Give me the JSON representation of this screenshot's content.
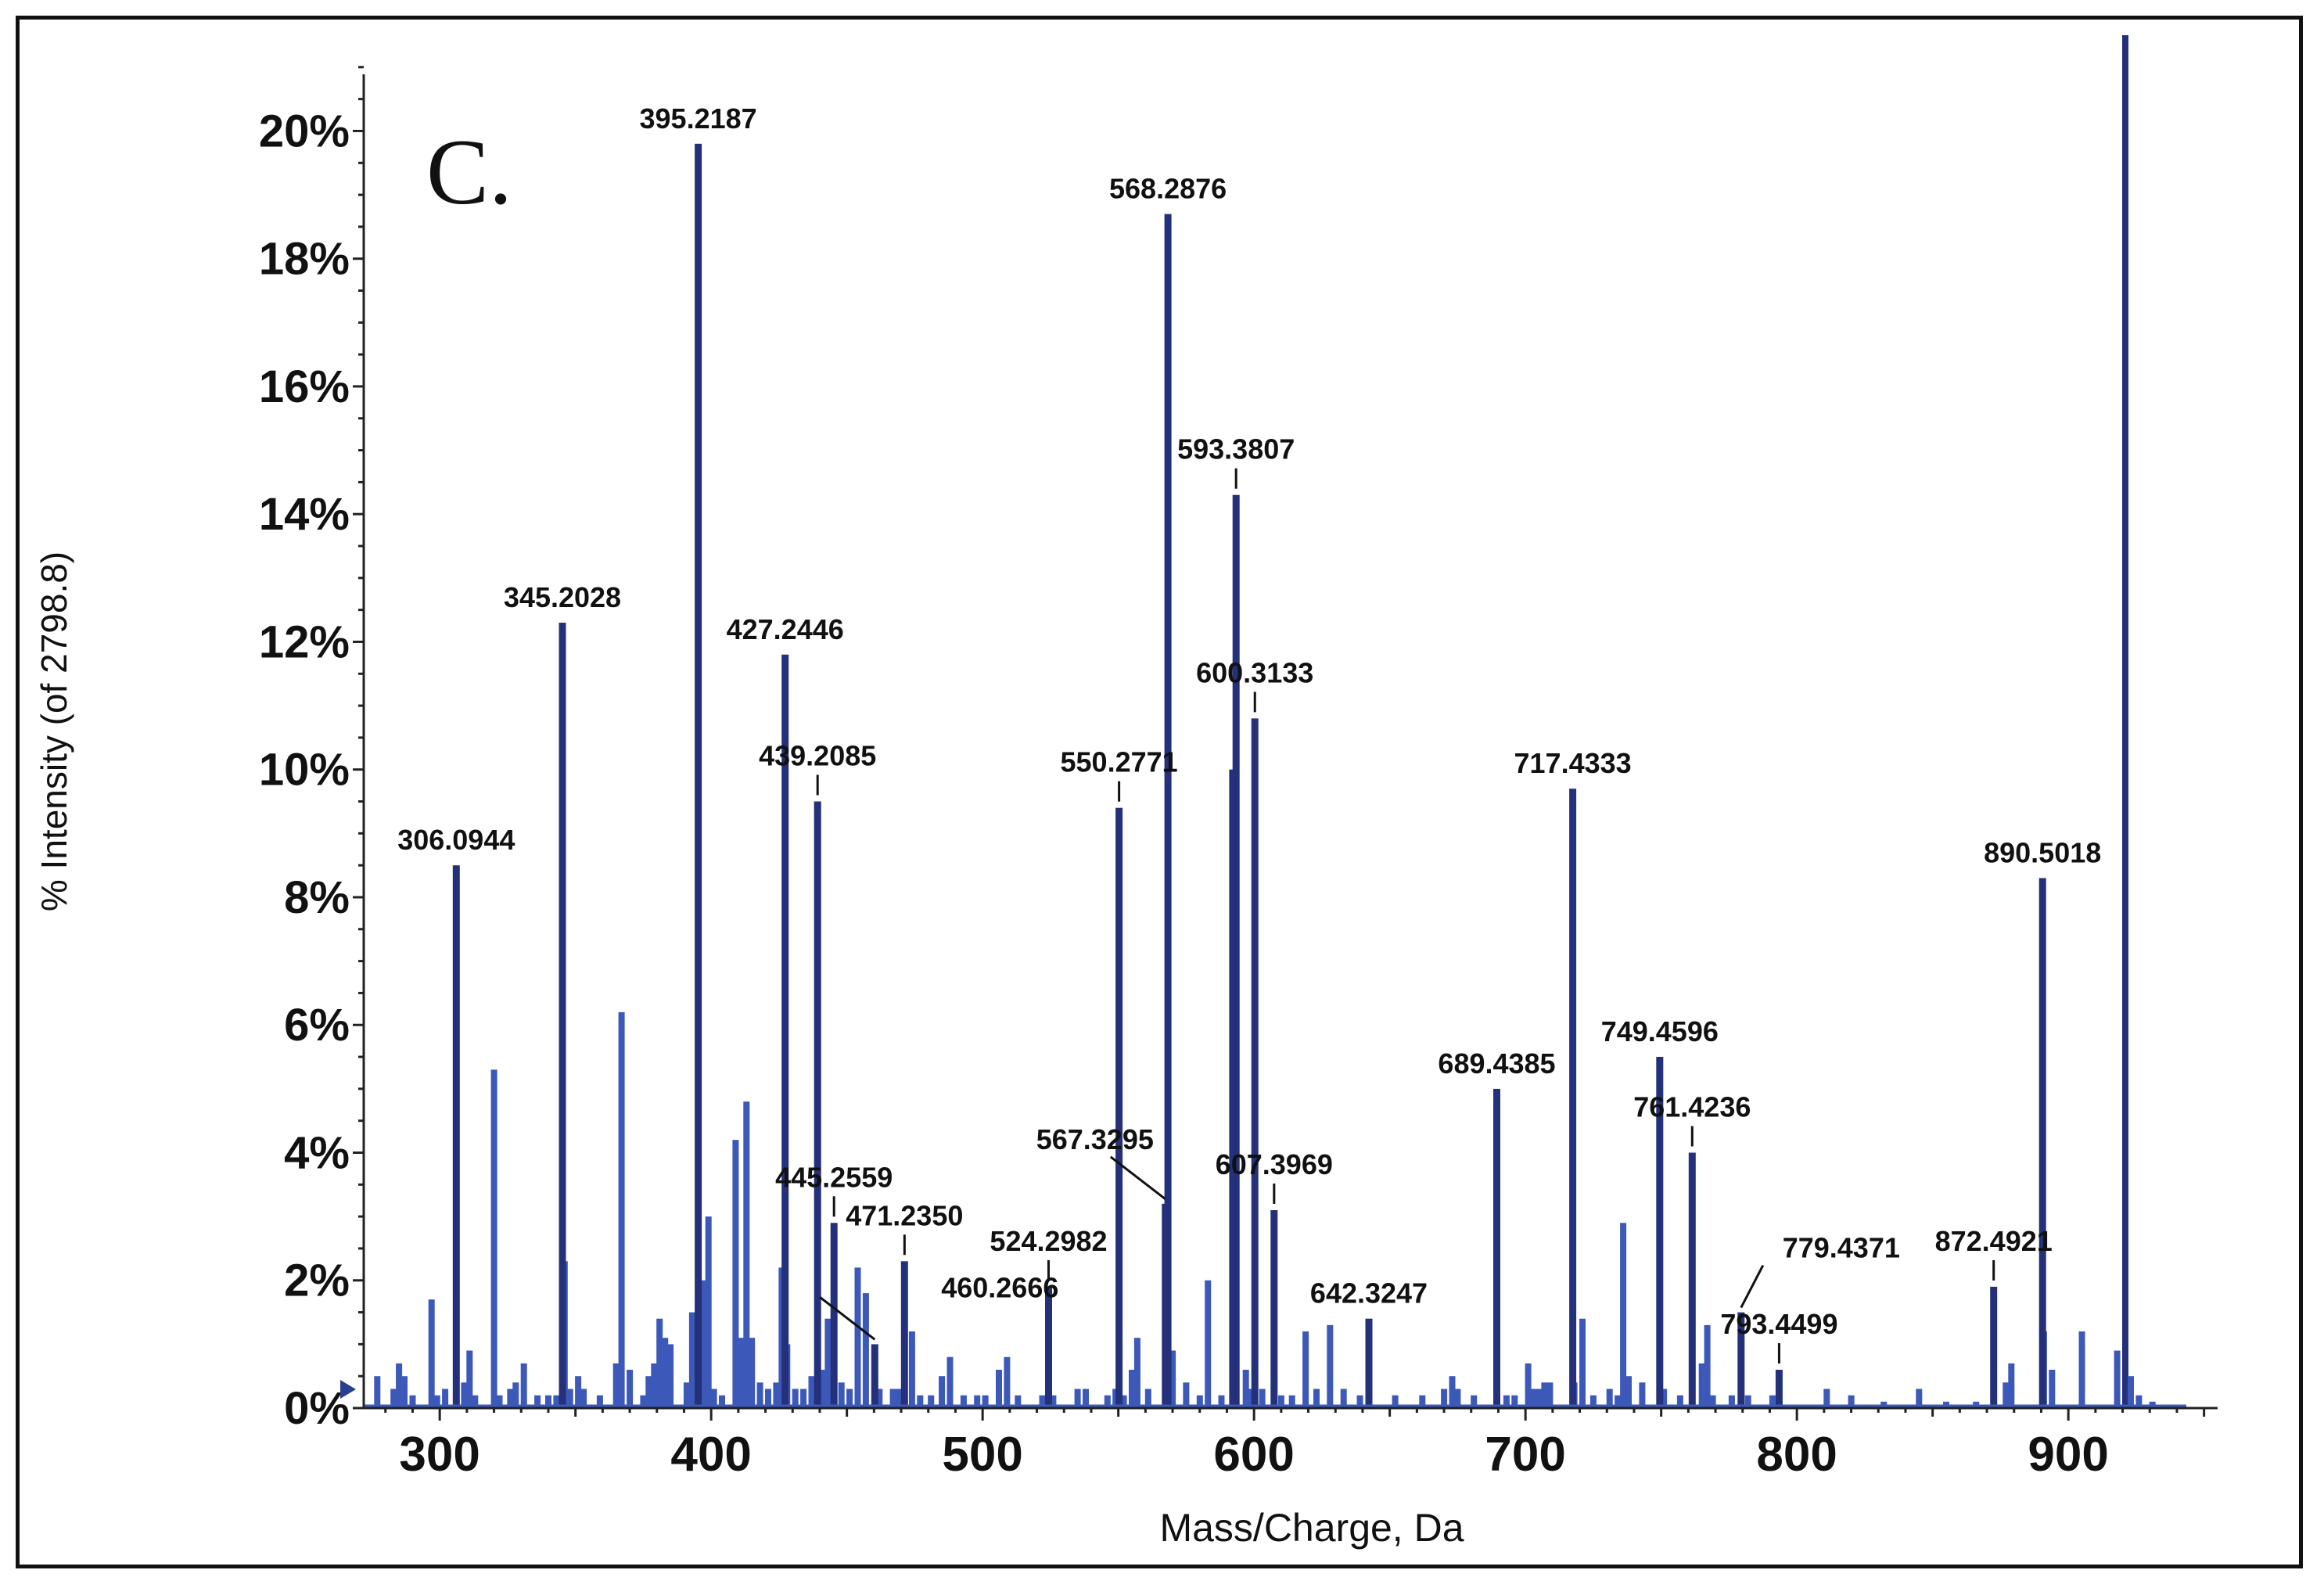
{
  "chart_data": {
    "type": "bar",
    "panel_label": "C.",
    "xlabel": "Mass/Charge, Da",
    "ylabel": "% Intensity (of 2798.8)",
    "xlim": [
      272,
      955
    ],
    "ylim": [
      0,
      21.5
    ],
    "x_ticks": [
      300,
      400,
      500,
      600,
      700,
      800,
      900
    ],
    "y_ticks": [
      0,
      2,
      4,
      6,
      8,
      10,
      12,
      14,
      16,
      18,
      20
    ],
    "y_tick_format": "%",
    "colors": {
      "peak": "#3c58b8",
      "peak_dark": "#24307a",
      "axis": "#222222"
    },
    "labeled_peaks": [
      {
        "mz": 306.0944,
        "label": "306.0944",
        "intensity": 8.5,
        "leader": "none"
      },
      {
        "mz": 345.2028,
        "label": "345.2028",
        "intensity": 12.3,
        "leader": "none"
      },
      {
        "mz": 395.2187,
        "label": "395.2187",
        "intensity": 19.8,
        "leader": "none"
      },
      {
        "mz": 427.2446,
        "label": "427.2446",
        "intensity": 11.8,
        "leader": "none"
      },
      {
        "mz": 439.2085,
        "label": "439.2085",
        "intensity": 9.5,
        "leader": "tick"
      },
      {
        "mz": 445.2559,
        "label": "445.2559",
        "intensity": 2.9,
        "leader": "tick"
      },
      {
        "mz": 460.2666,
        "label": "460.2666",
        "intensity": 1.0,
        "leader": "diag"
      },
      {
        "mz": 471.235,
        "label": "471.2350",
        "intensity": 2.3,
        "leader": "tick"
      },
      {
        "mz": 524.2982,
        "label": "524.2982",
        "intensity": 1.9,
        "leader": "tick"
      },
      {
        "mz": 550.2771,
        "label": "550.2771",
        "intensity": 9.4,
        "leader": "tick"
      },
      {
        "mz": 567.3295,
        "label": "567.3295",
        "intensity": 3.2,
        "leader": "diag"
      },
      {
        "mz": 568.2876,
        "label": "568.2876",
        "intensity": 18.7,
        "leader": "none"
      },
      {
        "mz": 593.3807,
        "label": "593.3807",
        "intensity": 14.3,
        "leader": "tick"
      },
      {
        "mz": 600.3133,
        "label": "600.3133",
        "intensity": 10.8,
        "leader": "tick"
      },
      {
        "mz": 607.3969,
        "label": "607.3969",
        "intensity": 3.1,
        "leader": "tick"
      },
      {
        "mz": 642.3247,
        "label": "642.3247",
        "intensity": 1.4,
        "leader": "none"
      },
      {
        "mz": 689.4385,
        "label": "689.4385",
        "intensity": 5.0,
        "leader": "none"
      },
      {
        "mz": 717.4333,
        "label": "717.4333",
        "intensity": 9.7,
        "leader": "none"
      },
      {
        "mz": 749.4596,
        "label": "749.4596",
        "intensity": 5.5,
        "leader": "none"
      },
      {
        "mz": 761.4236,
        "label": "761.4236",
        "intensity": 4.0,
        "leader": "tick"
      },
      {
        "mz": 779.4371,
        "label": "779.4371",
        "intensity": 1.5,
        "leader": "diag"
      },
      {
        "mz": 793.4499,
        "label": "793.4499",
        "intensity": 0.6,
        "leader": "tick"
      },
      {
        "mz": 872.4921,
        "label": "872.4921",
        "intensity": 1.9,
        "leader": "tick"
      },
      {
        "mz": 890.5018,
        "label": "890.5018",
        "intensity": 8.3,
        "leader": "none"
      }
    ],
    "unlabeled_peaks": [
      [
        277,
        0.5
      ],
      [
        283,
        0.3
      ],
      [
        285,
        0.7
      ],
      [
        287,
        0.5
      ],
      [
        290,
        0.2
      ],
      [
        297,
        1.7
      ],
      [
        299,
        0.2
      ],
      [
        302,
        0.3
      ],
      [
        309,
        0.4
      ],
      [
        311,
        0.9
      ],
      [
        313,
        0.2
      ],
      [
        320,
        5.3
      ],
      [
        322,
        0.2
      ],
      [
        326,
        0.3
      ],
      [
        328,
        0.4
      ],
      [
        331,
        0.7
      ],
      [
        336,
        0.2
      ],
      [
        340,
        0.2
      ],
      [
        343,
        0.2
      ],
      [
        346,
        2.3
      ],
      [
        348,
        0.3
      ],
      [
        351,
        0.5
      ],
      [
        353,
        0.3
      ],
      [
        359,
        0.2
      ],
      [
        365,
        0.7
      ],
      [
        367,
        6.2
      ],
      [
        370,
        0.6
      ],
      [
        375,
        0.2
      ],
      [
        377,
        0.5
      ],
      [
        379,
        0.7
      ],
      [
        381,
        1.4
      ],
      [
        383,
        1.1
      ],
      [
        385,
        1.0
      ],
      [
        391,
        0.4
      ],
      [
        393,
        1.5
      ],
      [
        397,
        2.0
      ],
      [
        399,
        3.0
      ],
      [
        401,
        0.3
      ],
      [
        404,
        0.2
      ],
      [
        409,
        4.2
      ],
      [
        411,
        1.1
      ],
      [
        413,
        4.8
      ],
      [
        415,
        1.1
      ],
      [
        418,
        0.4
      ],
      [
        421,
        0.3
      ],
      [
        424,
        0.4
      ],
      [
        426,
        2.2
      ],
      [
        428,
        1.0
      ],
      [
        431,
        0.3
      ],
      [
        434,
        0.3
      ],
      [
        437,
        0.5
      ],
      [
        441,
        0.6
      ],
      [
        443,
        1.4
      ],
      [
        448,
        0.4
      ],
      [
        451,
        0.3
      ],
      [
        454,
        2.2
      ],
      [
        457,
        1.8
      ],
      [
        462,
        0.3
      ],
      [
        467,
        0.3
      ],
      [
        469,
        0.3
      ],
      [
        474,
        1.2
      ],
      [
        477,
        0.2
      ],
      [
        481,
        0.2
      ],
      [
        485,
        0.5
      ],
      [
        488,
        0.8
      ],
      [
        493,
        0.2
      ],
      [
        498,
        0.2
      ],
      [
        501,
        0.2
      ],
      [
        506,
        0.6
      ],
      [
        509,
        0.8
      ],
      [
        513,
        0.2
      ],
      [
        522,
        0.2
      ],
      [
        526,
        0.2
      ],
      [
        535,
        0.3
      ],
      [
        538,
        0.3
      ],
      [
        546,
        0.2
      ],
      [
        549,
        0.3
      ],
      [
        552,
        0.2
      ],
      [
        555,
        0.6
      ],
      [
        557,
        1.1
      ],
      [
        561,
        0.3
      ],
      [
        570,
        0.9
      ],
      [
        575,
        0.4
      ],
      [
        580,
        0.2
      ],
      [
        583,
        2.0
      ],
      [
        588,
        0.2
      ],
      [
        592,
        10.0
      ],
      [
        597,
        0.6
      ],
      [
        599,
        0.3
      ],
      [
        603,
        0.3
      ],
      [
        610,
        0.2
      ],
      [
        614,
        0.2
      ],
      [
        619,
        1.2
      ],
      [
        623,
        0.3
      ],
      [
        628,
        1.3
      ],
      [
        633,
        0.3
      ],
      [
        639,
        0.2
      ],
      [
        652,
        0.2
      ],
      [
        662,
        0.2
      ],
      [
        670,
        0.3
      ],
      [
        673,
        0.5
      ],
      [
        675,
        0.3
      ],
      [
        681,
        0.2
      ],
      [
        693,
        0.2
      ],
      [
        696,
        0.2
      ],
      [
        701,
        0.7
      ],
      [
        703,
        0.3
      ],
      [
        705,
        0.3
      ],
      [
        707,
        0.4
      ],
      [
        709,
        0.4
      ],
      [
        718,
        0.4
      ],
      [
        721,
        1.4
      ],
      [
        725,
        0.2
      ],
      [
        731,
        0.3
      ],
      [
        734,
        0.2
      ],
      [
        736,
        2.9
      ],
      [
        738,
        0.5
      ],
      [
        743,
        0.4
      ],
      [
        751,
        0.3
      ],
      [
        757,
        0.2
      ],
      [
        765,
        0.7
      ],
      [
        767,
        1.3
      ],
      [
        769,
        0.2
      ],
      [
        776,
        0.2
      ],
      [
        782,
        0.2
      ],
      [
        791,
        0.2
      ],
      [
        811,
        0.3
      ],
      [
        820,
        0.2
      ],
      [
        832,
        0.1
      ],
      [
        845,
        0.3
      ],
      [
        855,
        0.1
      ],
      [
        866,
        0.1
      ],
      [
        877,
        0.4
      ],
      [
        879,
        0.7
      ],
      [
        891,
        1.2
      ],
      [
        894,
        0.6
      ],
      [
        905,
        1.2
      ],
      [
        918,
        0.9
      ],
      [
        921,
        21.5
      ],
      [
        923,
        0.5
      ],
      [
        926,
        0.2
      ],
      [
        931,
        0.1
      ]
    ]
  }
}
